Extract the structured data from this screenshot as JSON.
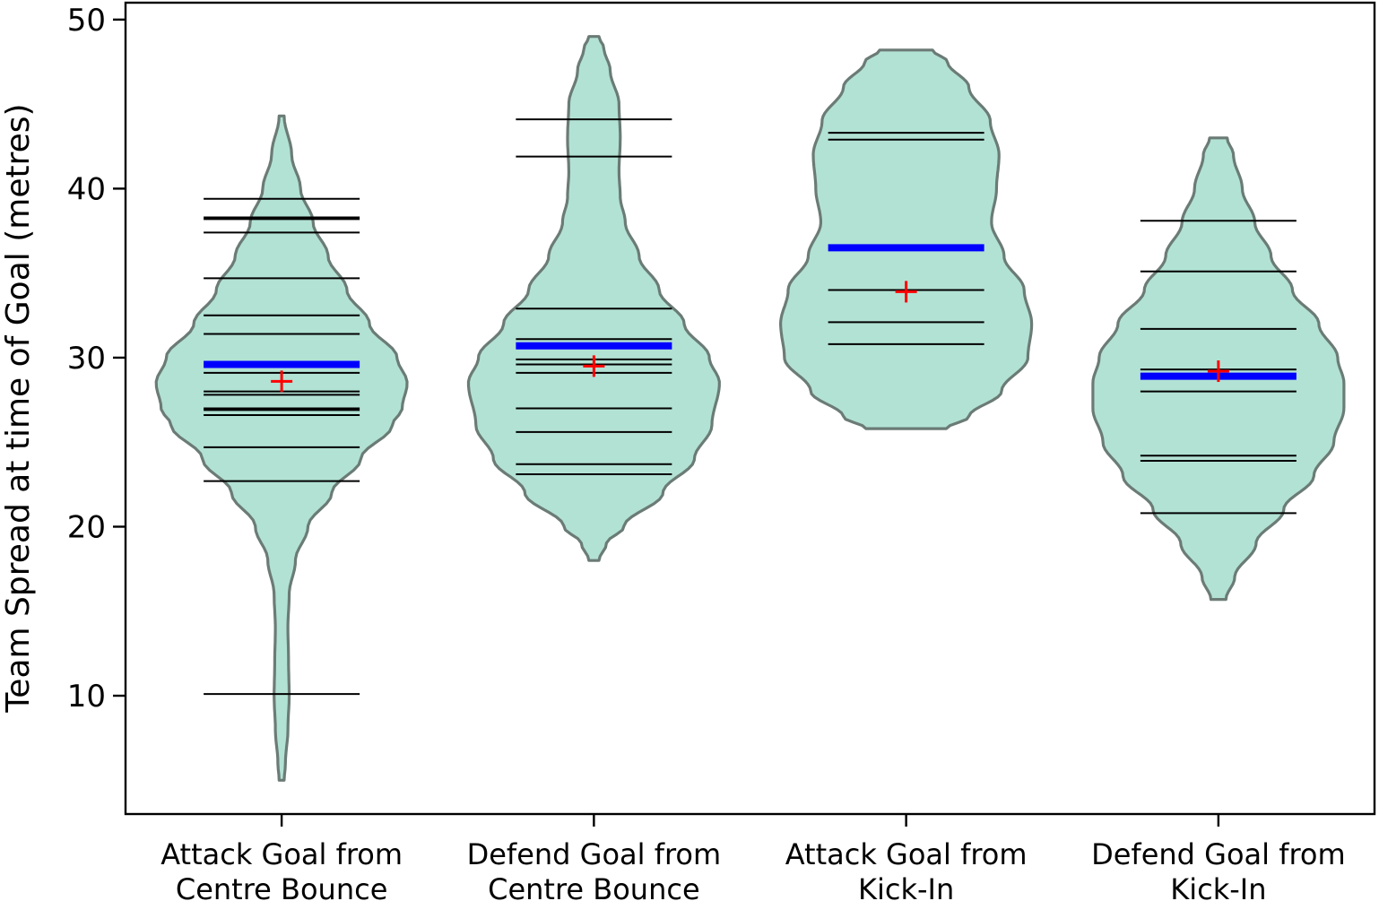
{
  "chart_data": {
    "type": "violin",
    "ylabel": "Team Spread at time of Goal (metres)",
    "xlabel": "",
    "title": "",
    "ylim": [
      3,
      51
    ],
    "yticks": [
      10,
      20,
      30,
      40,
      50
    ],
    "grid": false,
    "legend": "none",
    "colors": {
      "violin_fill": "#b2e2d4",
      "violin_edge": "#6b7b76",
      "observation_line": "#000000",
      "median_line": "#0000ff",
      "mean_marker": "#ff0000"
    },
    "categories": [
      {
        "label_lines": [
          "Attack Goal from",
          "Centre Bounce"
        ],
        "min": 5.0,
        "max": 44.3,
        "median": 29.6,
        "mean": 28.6,
        "observations": [
          39.4,
          38.3,
          38.2,
          37.4,
          34.7,
          32.5,
          31.4,
          29.1,
          28.0,
          27.8,
          27.0,
          26.9,
          26.6,
          24.7,
          22.7,
          10.1
        ],
        "density": [
          [
            5.0,
            0.02
          ],
          [
            6.0,
            0.03
          ],
          [
            8.0,
            0.05
          ],
          [
            10.0,
            0.06
          ],
          [
            12.0,
            0.055
          ],
          [
            14.0,
            0.05
          ],
          [
            16.0,
            0.06
          ],
          [
            18.0,
            0.11
          ],
          [
            20.0,
            0.21
          ],
          [
            22.0,
            0.4
          ],
          [
            24.0,
            0.63
          ],
          [
            26.0,
            0.88
          ],
          [
            27.0,
            0.96
          ],
          [
            28.5,
            1.0
          ],
          [
            30.0,
            0.92
          ],
          [
            32.0,
            0.7
          ],
          [
            34.0,
            0.52
          ],
          [
            36.0,
            0.37
          ],
          [
            38.0,
            0.25
          ],
          [
            40.0,
            0.15
          ],
          [
            42.0,
            0.08
          ],
          [
            44.3,
            0.02
          ]
        ]
      },
      {
        "label_lines": [
          "Defend Goal from",
          "Centre Bounce"
        ],
        "min": 18.0,
        "max": 49.0,
        "median": 30.7,
        "mean": 29.5,
        "observations": [
          44.1,
          41.9,
          32.9,
          31.1,
          29.9,
          29.6,
          29.1,
          27.0,
          25.6,
          23.7,
          23.1
        ],
        "density": [
          [
            18.0,
            0.04
          ],
          [
            19.0,
            0.1
          ],
          [
            20.0,
            0.24
          ],
          [
            22.0,
            0.55
          ],
          [
            24.0,
            0.8
          ],
          [
            26.0,
            0.94
          ],
          [
            28.5,
            1.0
          ],
          [
            30.0,
            0.92
          ],
          [
            32.0,
            0.72
          ],
          [
            34.0,
            0.52
          ],
          [
            36.0,
            0.36
          ],
          [
            38.0,
            0.25
          ],
          [
            39.5,
            0.21
          ],
          [
            41.0,
            0.2
          ],
          [
            43.0,
            0.21
          ],
          [
            45.0,
            0.2
          ],
          [
            47.0,
            0.13
          ],
          [
            48.3,
            0.08
          ],
          [
            49.0,
            0.04
          ]
        ]
      },
      {
        "label_lines": [
          "Attack Goal from",
          "Kick-In"
        ],
        "min": 25.8,
        "max": 48.2,
        "median": 36.5,
        "mean": 33.9,
        "observations": [
          43.3,
          42.9,
          34.0,
          32.1,
          30.8
        ],
        "density": [
          [
            25.8,
            0.32
          ],
          [
            26.5,
            0.5
          ],
          [
            28.0,
            0.76
          ],
          [
            30.0,
            0.97
          ],
          [
            32.0,
            1.0
          ],
          [
            34.0,
            0.94
          ],
          [
            36.0,
            0.78
          ],
          [
            38.0,
            0.68
          ],
          [
            40.0,
            0.72
          ],
          [
            42.0,
            0.74
          ],
          [
            44.0,
            0.67
          ],
          [
            46.0,
            0.5
          ],
          [
            47.5,
            0.33
          ],
          [
            48.2,
            0.21
          ]
        ]
      },
      {
        "label_lines": [
          "Defend Goal from",
          "Kick-In"
        ],
        "min": 15.7,
        "max": 43.0,
        "median": 28.9,
        "mean": 29.2,
        "observations": [
          38.1,
          35.1,
          31.7,
          29.3,
          28.0,
          24.2,
          23.9,
          20.8
        ],
        "density": [
          [
            15.7,
            0.06
          ],
          [
            17.0,
            0.13
          ],
          [
            19.0,
            0.3
          ],
          [
            21.0,
            0.52
          ],
          [
            23.0,
            0.76
          ],
          [
            25.0,
            0.92
          ],
          [
            27.0,
            1.0
          ],
          [
            28.5,
            1.0
          ],
          [
            30.0,
            0.95
          ],
          [
            32.0,
            0.8
          ],
          [
            34.0,
            0.59
          ],
          [
            36.0,
            0.42
          ],
          [
            38.0,
            0.29
          ],
          [
            40.0,
            0.19
          ],
          [
            42.0,
            0.12
          ],
          [
            43.0,
            0.07
          ]
        ]
      }
    ]
  }
}
